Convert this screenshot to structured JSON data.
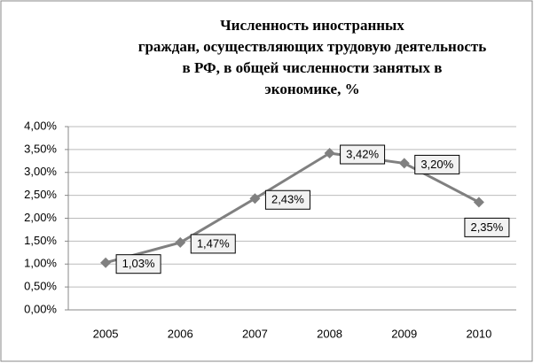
{
  "chart_data": {
    "type": "line",
    "title": [
      "Численность иностранных",
      "граждан, осуществляющих трудовую деятельность",
      "в РФ, в общей численности занятых в",
      "экономике, %"
    ],
    "categories": [
      "2005",
      "2006",
      "2007",
      "2008",
      "2009",
      "2010"
    ],
    "series": [
      {
        "color": "#808080",
        "values": [
          1.03,
          1.47,
          2.43,
          3.42,
          3.2,
          2.35
        ],
        "value_labels": [
          "1,03%",
          "1,47%",
          "2,43%",
          "3,42%",
          "3,20%",
          "2,35%"
        ]
      }
    ],
    "ylim": [
      0,
      4
    ],
    "yticks": [
      {
        "value": 0,
        "label": "0,00%"
      },
      {
        "value": 0.5,
        "label": "0,50%"
      },
      {
        "value": 1,
        "label": "1,00%"
      },
      {
        "value": 1.5,
        "label": "1,50%"
      },
      {
        "value": 2,
        "label": "2,00%"
      },
      {
        "value": 2.5,
        "label": "2,50%"
      },
      {
        "value": 3,
        "label": "3,00%"
      },
      {
        "value": 3.5,
        "label": "3,50%"
      },
      {
        "value": 4,
        "label": "4,00%"
      }
    ],
    "grid": true
  }
}
